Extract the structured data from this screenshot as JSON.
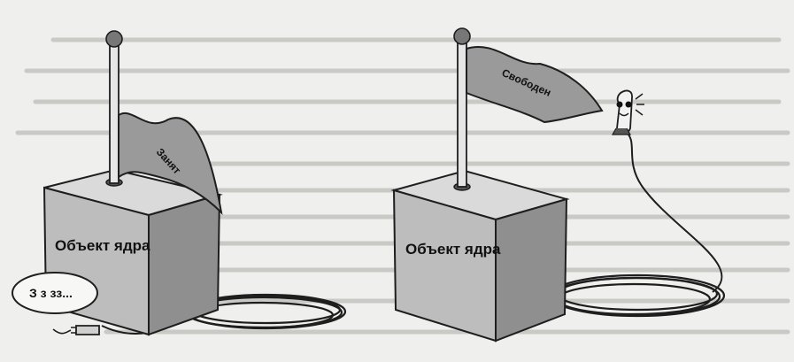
{
  "left_object": {
    "box_label": "Объект ядра",
    "flag_label": "Занят",
    "speech_label": "З з зз..."
  },
  "right_object": {
    "box_label": "Объект ядра",
    "flag_label": "Свободен"
  },
  "colors": {
    "background": "#efefed",
    "box_front": "#bdbdbd",
    "box_side": "#8f8f8f",
    "box_top": "#dadada",
    "flag": "#9a9a9a",
    "outline": "#1e1e1e"
  }
}
